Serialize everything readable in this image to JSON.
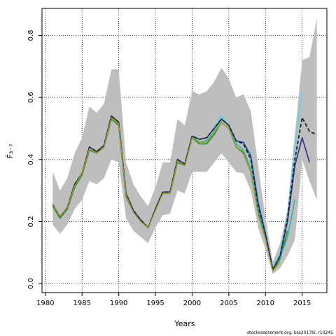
{
  "chart_data": {
    "type": "line",
    "title": "",
    "xlabel": "Years",
    "ylabel": "F̄₃₋₇",
    "xlim": [
      1980,
      2018
    ],
    "ylim": [
      0,
      0.88
    ],
    "xticks": [
      1980,
      1985,
      1990,
      1995,
      2000,
      2005,
      2010,
      2015
    ],
    "yticks": [
      0.0,
      0.2,
      0.4,
      0.6,
      0.8
    ],
    "ytick_labels": [
      "0.0",
      "0.2",
      "0.4",
      "0.6",
      "0.8"
    ],
    "grid": true,
    "grid_style": "dotted",
    "footer": "stockassessment.org, bss2017bl, r10245",
    "band": {
      "name": "confidence interval",
      "color": "#bebebe",
      "x": [
        1981,
        1982,
        1983,
        1984,
        1985,
        1986,
        1987,
        1988,
        1989,
        1990,
        1991,
        1992,
        1993,
        1994,
        1995,
        1996,
        1997,
        1998,
        1999,
        2000,
        2001,
        2002,
        2003,
        2004,
        2005,
        2006,
        2007,
        2008,
        2009,
        2010,
        2011,
        2012,
        2013,
        2014,
        2015,
        2016,
        2017
      ],
      "lower": [
        0.19,
        0.16,
        0.19,
        0.24,
        0.27,
        0.33,
        0.32,
        0.34,
        0.4,
        0.39,
        0.21,
        0.17,
        0.15,
        0.13,
        0.18,
        0.22,
        0.225,
        0.3,
        0.29,
        0.36,
        0.36,
        0.36,
        0.39,
        0.42,
        0.39,
        0.36,
        0.355,
        0.3,
        0.18,
        0.11,
        0.03,
        0.05,
        0.09,
        0.14,
        0.4,
        0.33,
        0.27
      ],
      "upper": [
        0.36,
        0.3,
        0.34,
        0.42,
        0.47,
        0.57,
        0.55,
        0.58,
        0.69,
        0.69,
        0.39,
        0.32,
        0.28,
        0.25,
        0.31,
        0.39,
        0.39,
        0.53,
        0.51,
        0.62,
        0.61,
        0.62,
        0.65,
        0.695,
        0.66,
        0.6,
        0.61,
        0.555,
        0.38,
        0.21,
        0.07,
        0.13,
        0.24,
        0.48,
        0.72,
        0.73,
        0.855
      ]
    },
    "series": [
      {
        "color": "#2e8b2e",
        "width": 1.6,
        "dash": "",
        "x": [
          1981,
          1982,
          1983,
          1984,
          1985,
          1986,
          1987,
          1988,
          1989,
          1990,
          1991,
          1992,
          1993,
          1994,
          1995,
          1996,
          1997,
          1998,
          1999,
          2000,
          2001,
          2002,
          2003,
          2004,
          2005,
          2006,
          2007,
          2008,
          2009,
          2010,
          2011,
          2012,
          2013
        ],
        "values": [
          0.25,
          0.21,
          0.24,
          0.31,
          0.35,
          0.43,
          0.42,
          0.44,
          0.53,
          0.51,
          0.28,
          0.23,
          0.2,
          0.18,
          0.24,
          0.29,
          0.29,
          0.39,
          0.38,
          0.47,
          0.45,
          0.45,
          0.48,
          0.52,
          0.5,
          0.44,
          0.42,
          0.36,
          0.23,
          0.15,
          0.04,
          0.08,
          0.17
        ]
      },
      {
        "color": "#22b8b0",
        "width": 1.6,
        "dash": "",
        "x": [
          1981,
          1982,
          1983,
          1984,
          1985,
          1986,
          1987,
          1988,
          1989,
          1990,
          1991,
          1992,
          1993,
          1994,
          1995,
          1996,
          1997,
          1998,
          1999,
          2000,
          2001,
          2002,
          2003,
          2004,
          2005,
          2006,
          2007,
          2008,
          2009,
          2010,
          2011,
          2012,
          2013,
          2014
        ],
        "values": [
          0.255,
          0.215,
          0.245,
          0.32,
          0.355,
          0.44,
          0.425,
          0.445,
          0.54,
          0.52,
          0.29,
          0.235,
          0.205,
          0.18,
          0.24,
          0.295,
          0.295,
          0.4,
          0.385,
          0.475,
          0.455,
          0.46,
          0.49,
          0.53,
          0.51,
          0.45,
          0.43,
          0.37,
          0.24,
          0.15,
          0.045,
          0.085,
          0.15,
          0.27
        ]
      },
      {
        "color": "#5fd3ef",
        "width": 1.6,
        "dash": "",
        "x": [
          1981,
          1982,
          1983,
          1984,
          1985,
          1986,
          1987,
          1988,
          1989,
          1990,
          1991,
          1992,
          1993,
          1994,
          1995,
          1996,
          1997,
          1998,
          1999,
          2000,
          2001,
          2002,
          2003,
          2004,
          2005,
          2006,
          2007,
          2008,
          2009,
          2010,
          2011,
          2012,
          2013,
          2014,
          2015
        ],
        "values": [
          0.255,
          0.215,
          0.245,
          0.32,
          0.355,
          0.44,
          0.425,
          0.445,
          0.54,
          0.52,
          0.29,
          0.235,
          0.205,
          0.18,
          0.24,
          0.295,
          0.295,
          0.4,
          0.385,
          0.475,
          0.465,
          0.47,
          0.5,
          0.54,
          0.51,
          0.46,
          0.45,
          0.42,
          0.27,
          0.16,
          0.05,
          0.1,
          0.22,
          0.44,
          0.62
        ]
      },
      {
        "color": "#2d2d8c",
        "width": 1.6,
        "dash": "",
        "x": [
          1981,
          1982,
          1983,
          1984,
          1985,
          1986,
          1987,
          1988,
          1989,
          1990,
          1991,
          1992,
          1993,
          1994,
          1995,
          1996,
          1997,
          1998,
          1999,
          2000,
          2001,
          2002,
          2003,
          2004,
          2005,
          2006,
          2007,
          2008,
          2009,
          2010,
          2011,
          2012,
          2013,
          2014,
          2015,
          2016
        ],
        "values": [
          0.255,
          0.215,
          0.245,
          0.32,
          0.355,
          0.44,
          0.425,
          0.445,
          0.54,
          0.52,
          0.29,
          0.235,
          0.205,
          0.18,
          0.24,
          0.295,
          0.295,
          0.4,
          0.385,
          0.475,
          0.465,
          0.47,
          0.5,
          0.53,
          0.51,
          0.46,
          0.455,
          0.41,
          0.26,
          0.16,
          0.045,
          0.09,
          0.2,
          0.38,
          0.47,
          0.39
        ]
      },
      {
        "color": "#222222",
        "width": 1.8,
        "dash": "5,3",
        "x": [
          1981,
          1982,
          1983,
          1984,
          1985,
          1986,
          1987,
          1988,
          1989,
          1990,
          1991,
          1992,
          1993,
          1994,
          1995,
          1996,
          1997,
          1998,
          1999,
          2000,
          2001,
          2002,
          2003,
          2004,
          2005,
          2006,
          2007,
          2008,
          2009,
          2010,
          2011,
          2012,
          2013,
          2014,
          2015,
          2016,
          2017
        ],
        "values": [
          0.255,
          0.215,
          0.245,
          0.32,
          0.355,
          0.44,
          0.425,
          0.445,
          0.54,
          0.52,
          0.29,
          0.235,
          0.205,
          0.18,
          0.24,
          0.295,
          0.295,
          0.4,
          0.385,
          0.475,
          0.465,
          0.47,
          0.5,
          0.53,
          0.51,
          0.46,
          0.45,
          0.4,
          0.25,
          0.16,
          0.045,
          0.09,
          0.21,
          0.4,
          0.535,
          0.49,
          0.48
        ]
      },
      {
        "color": "#a8a020",
        "width": 1.2,
        "dash": "",
        "x": [
          1981,
          1982,
          1983,
          1984,
          1985,
          1986,
          1987,
          1988,
          1989,
          1990,
          1991,
          1992,
          1993,
          1994,
          1995,
          1996,
          1997,
          1998,
          1999,
          2000,
          2001,
          2002,
          2003,
          2004,
          2005,
          2006,
          2007,
          2008,
          2009,
          2010,
          2011,
          2012
        ],
        "values": [
          0.255,
          0.215,
          0.245,
          0.315,
          0.355,
          0.435,
          0.42,
          0.44,
          0.535,
          0.515,
          0.285,
          0.23,
          0.2,
          0.18,
          0.235,
          0.29,
          0.29,
          0.395,
          0.38,
          0.47,
          0.455,
          0.455,
          0.485,
          0.52,
          0.5,
          0.44,
          0.425,
          0.36,
          0.22,
          0.14,
          0.04,
          0.07
        ]
      }
    ]
  }
}
